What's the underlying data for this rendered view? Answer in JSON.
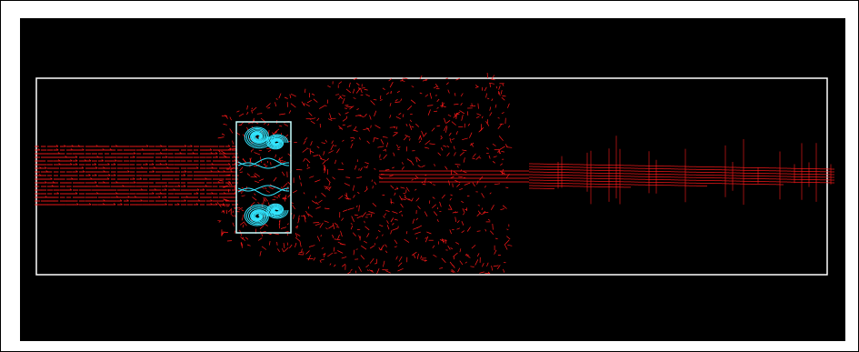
{
  "figure": {
    "background": "#000000",
    "domain_outline_color": "#ffffff",
    "vector_color": "#ff1a1a",
    "streamline_color": "#33e6ff",
    "zoom_box_color": "#c8ffff"
  }
}
